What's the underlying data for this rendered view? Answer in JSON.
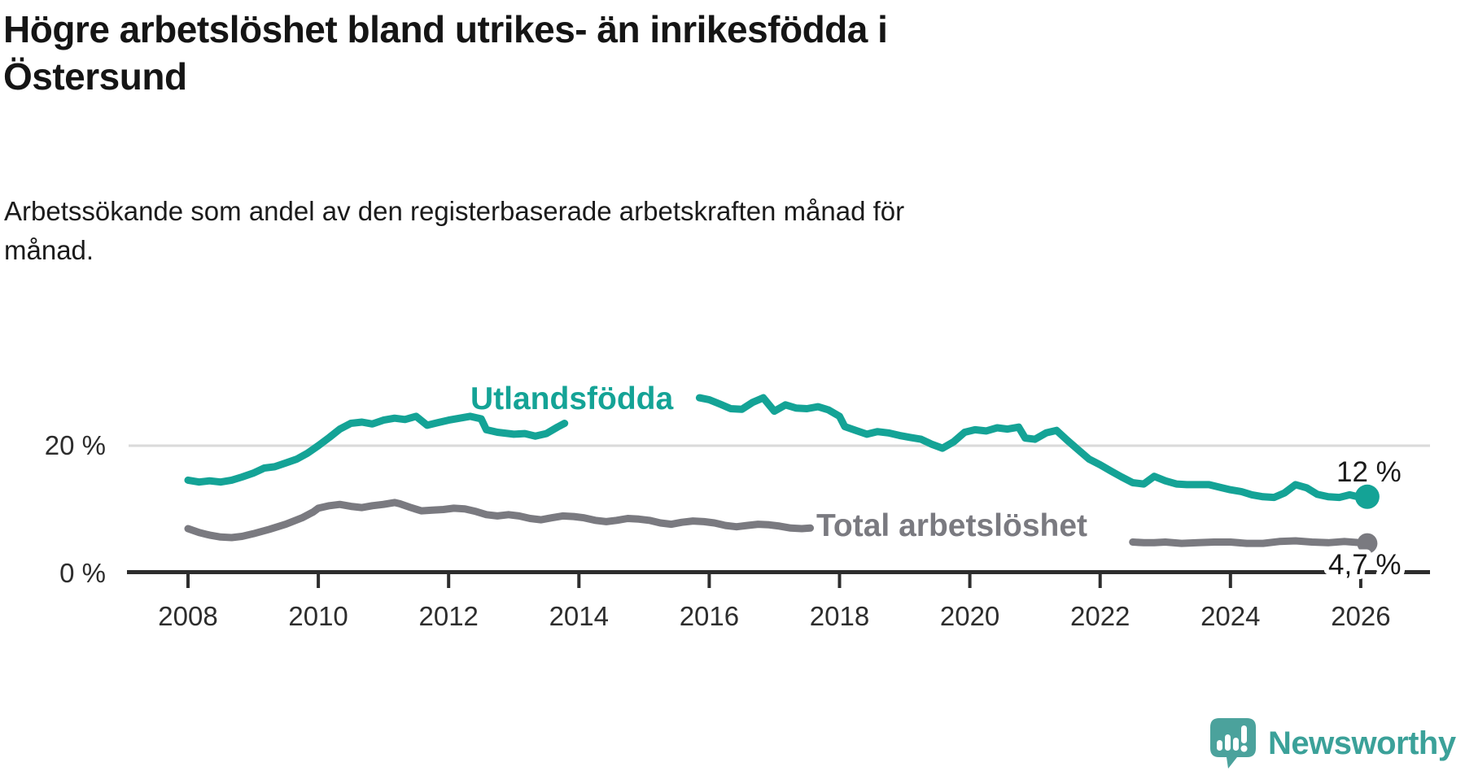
{
  "header": {
    "title_line1": "Högre arbetslöshet bland utrikes- än inrikesfödda i",
    "title_line2": "Östersund",
    "subtitle_line1": "Arbetssökande som andel av den registerbaserade arbetskraften månad för",
    "subtitle_line2": "månad."
  },
  "brand": {
    "name": "Newsworthy",
    "icon": "newsworthy-logo-icon",
    "color": "#3ba199"
  },
  "colors": {
    "accent_teal": "#14a396",
    "series_gray": "#7a7a80",
    "axis": "#2d2d2d",
    "gridline": "#dadada",
    "value_label": "#1a1a1a",
    "background": "#ffffff"
  },
  "chart_data": {
    "type": "line",
    "title": "Högre arbetslöshet bland utrikes- än inrikesfödda i Östersund",
    "subtitle": "Arbetssökande som andel av den registerbaserade arbetskraften månad för månad.",
    "xlabel": "",
    "ylabel": "",
    "x_unit": "year (monthly data)",
    "y_unit": "%",
    "xlim": [
      2007.05,
      2027.05
    ],
    "ylim": [
      0,
      28.5
    ],
    "grid": "single horizontal gridline at 20 %",
    "x_ticks": [
      2008,
      2010,
      2012,
      2014,
      2016,
      2018,
      2020,
      2022,
      2024,
      2026
    ],
    "y_ticks": [
      {
        "value": 0,
        "label": "0 %"
      },
      {
        "value": 20,
        "label": "20 %"
      }
    ],
    "gridline_values": [
      20
    ],
    "series": [
      {
        "name": "Utlandsfödda",
        "color": "#14a396",
        "line_width": 9,
        "end_label": "12 %",
        "end_value": 12.0,
        "occluded_by_label": [
          2013.8,
          2015.83
        ],
        "points": [
          [
            2008.0,
            14.6
          ],
          [
            2008.17,
            14.3
          ],
          [
            2008.33,
            14.5
          ],
          [
            2008.5,
            14.3
          ],
          [
            2008.67,
            14.6
          ],
          [
            2008.83,
            15.1
          ],
          [
            2009.0,
            15.7
          ],
          [
            2009.17,
            16.5
          ],
          [
            2009.33,
            16.7
          ],
          [
            2009.5,
            17.3
          ],
          [
            2009.67,
            17.9
          ],
          [
            2009.83,
            18.8
          ],
          [
            2010.0,
            20.0
          ],
          [
            2010.17,
            21.3
          ],
          [
            2010.33,
            22.6
          ],
          [
            2010.5,
            23.5
          ],
          [
            2010.67,
            23.7
          ],
          [
            2010.83,
            23.4
          ],
          [
            2011.0,
            24.0
          ],
          [
            2011.17,
            24.3
          ],
          [
            2011.33,
            24.1
          ],
          [
            2011.5,
            24.6
          ],
          [
            2011.67,
            23.2
          ],
          [
            2011.83,
            23.6
          ],
          [
            2012.0,
            24.0
          ],
          [
            2012.17,
            24.3
          ],
          [
            2012.33,
            24.6
          ],
          [
            2012.5,
            24.2
          ],
          [
            2012.58,
            22.5
          ],
          [
            2012.75,
            22.1
          ],
          [
            2013.0,
            21.8
          ],
          [
            2013.17,
            21.9
          ],
          [
            2013.33,
            21.5
          ],
          [
            2013.5,
            21.9
          ],
          [
            2013.67,
            22.9
          ],
          [
            2013.78,
            23.5
          ],
          [
            2014.0,
            24.3
          ],
          [
            2014.33,
            24.8
          ],
          [
            2014.67,
            25.2
          ],
          [
            2015.0,
            25.6
          ],
          [
            2015.33,
            26.0
          ],
          [
            2015.67,
            26.9
          ],
          [
            2015.85,
            27.5
          ],
          [
            2016.0,
            27.2
          ],
          [
            2016.17,
            26.5
          ],
          [
            2016.33,
            25.8
          ],
          [
            2016.5,
            25.7
          ],
          [
            2016.67,
            26.8
          ],
          [
            2016.83,
            27.5
          ],
          [
            2017.0,
            25.4
          ],
          [
            2017.17,
            26.4
          ],
          [
            2017.33,
            25.9
          ],
          [
            2017.5,
            25.8
          ],
          [
            2017.67,
            26.1
          ],
          [
            2017.83,
            25.6
          ],
          [
            2018.0,
            24.6
          ],
          [
            2018.08,
            23.0
          ],
          [
            2018.25,
            22.4
          ],
          [
            2018.42,
            21.8
          ],
          [
            2018.58,
            22.2
          ],
          [
            2018.75,
            22.0
          ],
          [
            2018.92,
            21.6
          ],
          [
            2019.08,
            21.3
          ],
          [
            2019.25,
            21.0
          ],
          [
            2019.42,
            20.2
          ],
          [
            2019.58,
            19.6
          ],
          [
            2019.75,
            20.6
          ],
          [
            2019.92,
            22.1
          ],
          [
            2020.08,
            22.5
          ],
          [
            2020.25,
            22.3
          ],
          [
            2020.42,
            22.8
          ],
          [
            2020.58,
            22.6
          ],
          [
            2020.75,
            22.9
          ],
          [
            2020.85,
            21.2
          ],
          [
            2021.0,
            21.0
          ],
          [
            2021.17,
            22.0
          ],
          [
            2021.33,
            22.4
          ],
          [
            2021.5,
            20.8
          ],
          [
            2021.67,
            19.3
          ],
          [
            2021.83,
            17.9
          ],
          [
            2022.0,
            17.0
          ],
          [
            2022.17,
            16.0
          ],
          [
            2022.33,
            15.1
          ],
          [
            2022.5,
            14.2
          ],
          [
            2022.67,
            14.0
          ],
          [
            2022.83,
            15.2
          ],
          [
            2023.0,
            14.5
          ],
          [
            2023.17,
            14.0
          ],
          [
            2023.33,
            13.9
          ],
          [
            2023.5,
            13.9
          ],
          [
            2023.67,
            13.9
          ],
          [
            2023.83,
            13.5
          ],
          [
            2024.0,
            13.1
          ],
          [
            2024.17,
            12.8
          ],
          [
            2024.33,
            12.3
          ],
          [
            2024.5,
            12.0
          ],
          [
            2024.67,
            11.9
          ],
          [
            2024.83,
            12.6
          ],
          [
            2025.0,
            13.9
          ],
          [
            2025.17,
            13.4
          ],
          [
            2025.33,
            12.4
          ],
          [
            2025.5,
            12.0
          ],
          [
            2025.67,
            11.9
          ],
          [
            2025.83,
            12.3
          ],
          [
            2026.0,
            11.9
          ],
          [
            2026.1,
            12.0
          ]
        ]
      },
      {
        "name": "Total arbetslöshet",
        "color": "#7a7a80",
        "line_width": 9,
        "end_label": "4,7 %",
        "end_value": 4.7,
        "occluded_by_label": [
          2017.58,
          2022.45
        ],
        "points": [
          [
            2008.0,
            7.0
          ],
          [
            2008.17,
            6.4
          ],
          [
            2008.33,
            6.0
          ],
          [
            2008.5,
            5.7
          ],
          [
            2008.67,
            5.6
          ],
          [
            2008.83,
            5.8
          ],
          [
            2009.0,
            6.2
          ],
          [
            2009.25,
            6.9
          ],
          [
            2009.5,
            7.7
          ],
          [
            2009.75,
            8.7
          ],
          [
            2009.92,
            9.6
          ],
          [
            2010.0,
            10.2
          ],
          [
            2010.17,
            10.6
          ],
          [
            2010.33,
            10.8
          ],
          [
            2010.5,
            10.5
          ],
          [
            2010.67,
            10.3
          ],
          [
            2010.83,
            10.6
          ],
          [
            2011.0,
            10.8
          ],
          [
            2011.17,
            11.1
          ],
          [
            2011.25,
            10.9
          ],
          [
            2011.42,
            10.3
          ],
          [
            2011.58,
            9.8
          ],
          [
            2011.75,
            9.9
          ],
          [
            2011.92,
            10.0
          ],
          [
            2012.08,
            10.2
          ],
          [
            2012.25,
            10.1
          ],
          [
            2012.42,
            9.7
          ],
          [
            2012.58,
            9.2
          ],
          [
            2012.75,
            9.0
          ],
          [
            2012.92,
            9.2
          ],
          [
            2013.08,
            9.0
          ],
          [
            2013.25,
            8.6
          ],
          [
            2013.42,
            8.4
          ],
          [
            2013.58,
            8.7
          ],
          [
            2013.75,
            9.0
          ],
          [
            2013.92,
            8.9
          ],
          [
            2014.08,
            8.7
          ],
          [
            2014.25,
            8.3
          ],
          [
            2014.42,
            8.1
          ],
          [
            2014.58,
            8.3
          ],
          [
            2014.75,
            8.6
          ],
          [
            2014.92,
            8.5
          ],
          [
            2015.08,
            8.3
          ],
          [
            2015.25,
            7.9
          ],
          [
            2015.42,
            7.7
          ],
          [
            2015.58,
            8.0
          ],
          [
            2015.75,
            8.2
          ],
          [
            2015.92,
            8.1
          ],
          [
            2016.08,
            7.9
          ],
          [
            2016.25,
            7.5
          ],
          [
            2016.42,
            7.3
          ],
          [
            2016.58,
            7.5
          ],
          [
            2016.75,
            7.7
          ],
          [
            2016.92,
            7.6
          ],
          [
            2017.08,
            7.4
          ],
          [
            2017.25,
            7.1
          ],
          [
            2017.42,
            7.0
          ],
          [
            2017.55,
            7.1
          ],
          [
            2017.75,
            7.2
          ],
          [
            2018.0,
            7.0
          ],
          [
            2018.5,
            6.6
          ],
          [
            2019.0,
            6.4
          ],
          [
            2019.5,
            6.2
          ],
          [
            2020.0,
            6.7
          ],
          [
            2020.4,
            7.6
          ],
          [
            2020.75,
            7.4
          ],
          [
            2021.0,
            7.0
          ],
          [
            2021.5,
            6.2
          ],
          [
            2022.0,
            5.5
          ],
          [
            2022.3,
            5.1
          ],
          [
            2022.5,
            4.9
          ],
          [
            2022.67,
            4.8
          ],
          [
            2022.83,
            4.8
          ],
          [
            2023.0,
            4.9
          ],
          [
            2023.25,
            4.7
          ],
          [
            2023.5,
            4.8
          ],
          [
            2023.75,
            4.9
          ],
          [
            2024.0,
            4.9
          ],
          [
            2024.25,
            4.7
          ],
          [
            2024.5,
            4.7
          ],
          [
            2024.75,
            5.0
          ],
          [
            2025.0,
            5.1
          ],
          [
            2025.25,
            4.9
          ],
          [
            2025.5,
            4.8
          ],
          [
            2025.75,
            5.0
          ],
          [
            2026.0,
            4.8
          ],
          [
            2026.1,
            4.7
          ]
        ]
      }
    ],
    "legend": "inline labels next to lines"
  }
}
